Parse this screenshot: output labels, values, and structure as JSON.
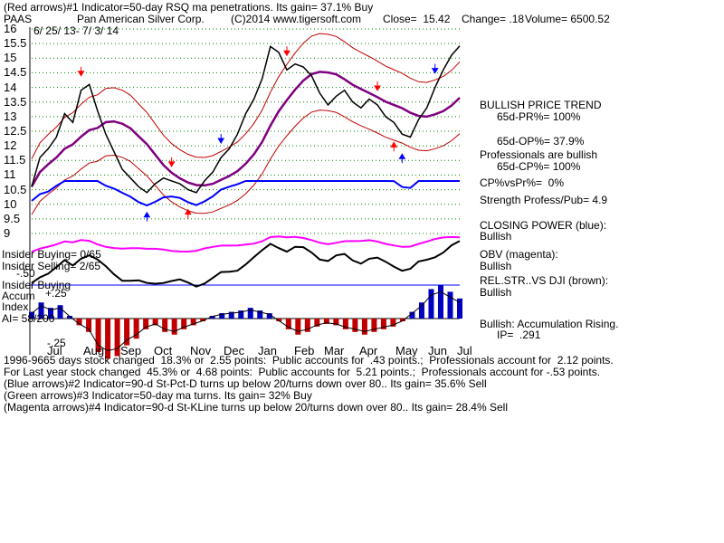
{
  "header": {
    "line1": "(Red arrows)#1 Indicator=50-day RSQ ma penetrations. Its gain= 37.1% Buy",
    "ticker": "PAAS",
    "company": "Pan American Silver Corp.",
    "copyright": "(C)2014 www.tigersoft.com",
    "close": "Close=  15.42",
    "change": "Change= .18",
    "volume": "Volume= 6500.52",
    "date_range": "6/ 25/ 13- 7/ 3/ 14"
  },
  "left_labels": {
    "insider_buying_1": "Insider Buying= 0/65",
    "insider_selling": "Insider Selling= 2/65",
    "insider_buying_2": "Insider Buying",
    "accum": "Accum",
    "index": "Index",
    "ai": "AI= 58/200",
    "plus25": "+.25",
    "minus25": "-.25",
    "minus50": "-.50"
  },
  "right_panel": {
    "trend": "BULLISH PRICE TREND",
    "pr": "65d-PR%= 100%",
    "op": "65d-OP%= 37.9%",
    "prof": "Professionals are bullish",
    "cp": "65d-CP%= 100%",
    "cpvspr": "CP%vsPr%=  0%",
    "strength": "Strength Profess/Pub= 4.9",
    "closing_power": "CLOSING POWER (blue):",
    "cp_bull": "Bullish",
    "obv": "OBV (magenta):",
    "obv_bull": "Bullish",
    "relstr": "REL.STR..VS DJI (brown):",
    "relstr_bull": "Bullish",
    "accum_rising": "Bullish: Accumulation Rising.",
    "ip": "IP=  .291"
  },
  "footer": {
    "line1": "1996-9665 days stock changed  18.3% or  2.55 points:  Public accounts for  .43 points.;  Professionals account for  2.12 points.",
    "line2": "For Last year stock changed  45.3% or  4.68 points:  Public accounts for  5.21 points.;  Professionals account for -.53 points.",
    "line3": "(Blue arrows)#2 Indicator=90-d St-Pct-D turns up below 20/turns down over 80.. Its gain= 35.6% Sell",
    "line4": "(Green arrows)#3 Indicator=50-day ma turns. Its gain= 32% Buy",
    "line5": "(Magenta arrows)#4 Indicator=90-d St-KLine turns up below 20/turns down over 80.. Its gain= 28.4% Sell"
  },
  "colors": {
    "price": "#000000",
    "band": "#c00000",
    "ma50": "#800080",
    "closing_power": "#0000ff",
    "obv": "#ff00ff",
    "relstr": "#000000",
    "accum_pos": "#0000c0",
    "accum_neg": "#c00000",
    "grid": "#008000",
    "arrow_red": "#ff0000",
    "arrow_blue": "#0000ff"
  },
  "chart_data": {
    "type": "line",
    "y_ticks": [
      "16",
      "15.5",
      "15",
      "14.5",
      "14",
      "13.5",
      "13",
      "12.5",
      "12",
      "11.5",
      "11",
      "10.5",
      "10",
      "9.5",
      "9"
    ],
    "ylim": [
      9,
      16
    ],
    "x_ticks": [
      "Jul",
      "Aug",
      "Sep",
      "Oct",
      "Nov",
      "Dec",
      "Jan",
      "Feb",
      "Mar",
      "Apr",
      "May",
      "Jun",
      "Jul"
    ],
    "series": [
      {
        "name": "PAAS",
        "values": [
          10.6,
          11.6,
          11.9,
          12.3,
          13.1,
          12.8,
          13.9,
          14.1,
          13.2,
          12.4,
          11.8,
          11.2,
          10.9,
          10.6,
          10.4,
          10.7,
          10.9,
          10.8,
          10.7,
          10.5,
          10.4,
          10.8,
          11.1,
          11.6,
          11.9,
          12.4,
          13.1,
          13.6,
          14.3,
          15.4,
          15.2,
          14.6,
          14.8,
          14.7,
          14.4,
          13.8,
          13.4,
          13.7,
          13.9,
          13.5,
          13.3,
          13.6,
          13.4,
          13.0,
          12.8,
          12.4,
          12.3,
          12.9,
          13.3,
          14.0,
          14.6,
          15.1,
          15.42
        ]
      }
    ],
    "accumulation_index": {
      "ylim": [
        -0.5,
        0.5
      ],
      "values": [
        0.05,
        0.12,
        0.08,
        0.1,
        0.02,
        -0.05,
        -0.1,
        -0.25,
        -0.3,
        -0.28,
        -0.2,
        -0.15,
        -0.08,
        -0.05,
        -0.1,
        -0.12,
        -0.08,
        -0.05,
        -0.02,
        0.02,
        0.04,
        0.05,
        0.06,
        0.08,
        0.06,
        0.04,
        -0.02,
        -0.08,
        -0.12,
        -0.1,
        -0.06,
        -0.04,
        -0.05,
        -0.08,
        -0.1,
        -0.12,
        -0.1,
        -0.08,
        -0.06,
        -0.02,
        0.05,
        0.12,
        0.22,
        0.25,
        0.2,
        0.15
      ]
    }
  }
}
